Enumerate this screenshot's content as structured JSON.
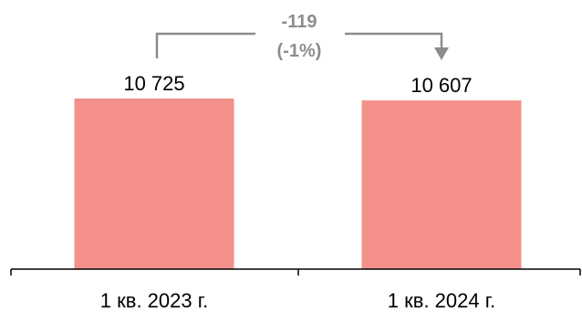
{
  "chart_data": {
    "type": "bar",
    "categories": [
      "1 кв. 2023 г.",
      "1 кв. 2024 г."
    ],
    "values": [
      10725,
      10607
    ],
    "value_labels": [
      "10 725",
      "10 607"
    ],
    "title": "",
    "xlabel": "",
    "ylabel": "",
    "ylim": [
      0,
      10725
    ],
    "grid": false,
    "legend": "none",
    "annotation": {
      "from": "1 кв. 2023 г.",
      "to": "1 кв. 2024 г.",
      "change": "-119",
      "change_pct": "(-1%)"
    }
  },
  "colors": {
    "bar": "#F4908A",
    "annotation": "#8C8C8C",
    "axis": "#000000",
    "text": "#000000"
  }
}
